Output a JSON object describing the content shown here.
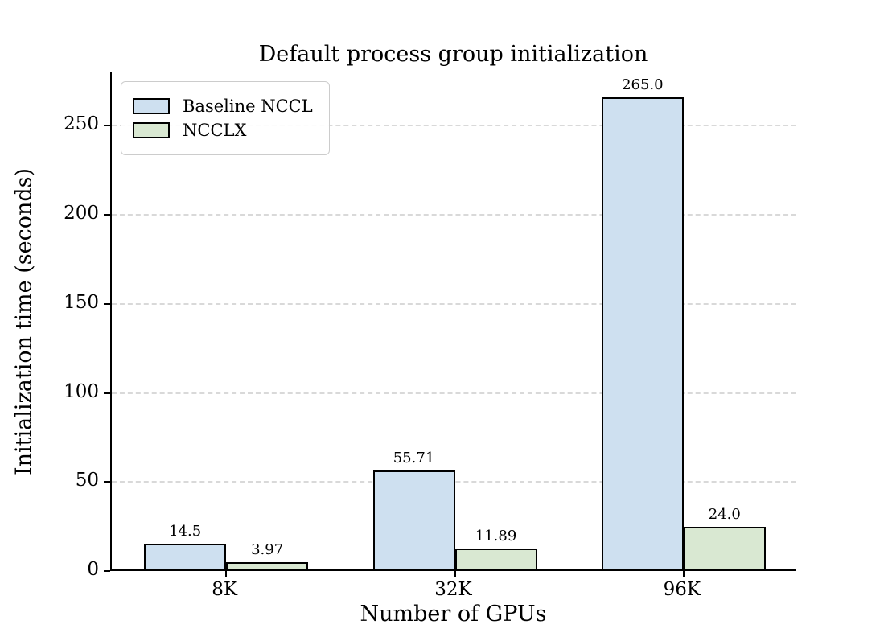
{
  "chart_data": {
    "type": "bar",
    "title": "Default process group initialization",
    "xlabel": "Number of GPUs",
    "ylabel": "Initialization time (seconds)",
    "categories": [
      "8K",
      "32K",
      "96K"
    ],
    "series": [
      {
        "name": "Baseline NCCL",
        "color": "#cee0f0",
        "values": [
          14.5,
          55.71,
          265.0
        ],
        "labels": [
          "14.5",
          "55.71",
          "265.0"
        ]
      },
      {
        "name": "NCCLX",
        "color": "#d9e8d2",
        "values": [
          3.97,
          11.89,
          24.0
        ],
        "labels": [
          "3.97",
          "11.89",
          "24.0"
        ]
      }
    ],
    "bar_edge_color": "#000000",
    "yticks": [
      0,
      50,
      100,
      150,
      200,
      250
    ],
    "ylim": [
      0,
      280
    ],
    "grid": "horizontal-dashed-gridlines",
    "gridline_color": "#d9d9d9",
    "legend_position": "upper-left",
    "background_color": "#ffffff"
  }
}
